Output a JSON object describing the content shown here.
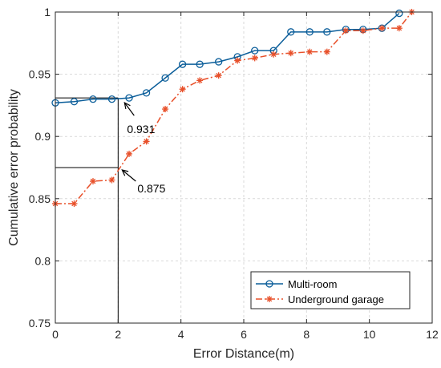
{
  "chart_data": {
    "type": "line",
    "title": "",
    "xlabel": "Error Distance(m)",
    "ylabel": "Cumulative error probability",
    "xlim": [
      0,
      12
    ],
    "ylim": [
      0.75,
      1
    ],
    "xticks": [
      0,
      2,
      4,
      6,
      8,
      10,
      12
    ],
    "yticks": [
      0.75,
      0.8,
      0.85,
      0.9,
      0.95,
      1
    ],
    "xtick_labels": [
      "0",
      "2",
      "4",
      "6",
      "8",
      "10",
      "12"
    ],
    "ytick_labels": [
      "0.75",
      "0.8",
      "0.85",
      "0.9",
      "0.95",
      "1"
    ],
    "grid": true,
    "legend_position": "bottom-right",
    "series": [
      {
        "name": "Multi-room",
        "color": "#0b5e9a",
        "line_style": "solid",
        "marker": "circle",
        "x": [
          0,
          0.6,
          1.2,
          1.8,
          2.35,
          2.9,
          3.5,
          4.05,
          4.6,
          5.2,
          5.8,
          6.35,
          6.95,
          7.5,
          8.1,
          8.65,
          9.25,
          9.8,
          10.4,
          10.95
        ],
        "y": [
          0.927,
          0.928,
          0.93,
          0.93,
          0.931,
          0.935,
          0.947,
          0.958,
          0.958,
          0.96,
          0.964,
          0.969,
          0.969,
          0.984,
          0.984,
          0.984,
          0.986,
          0.986,
          0.987,
          0.999
        ]
      },
      {
        "name": "Underground garage",
        "color": "#e8502a",
        "line_style": "dash-dot",
        "marker": "asterisk",
        "x": [
          0,
          0.6,
          1.2,
          1.8,
          2.35,
          2.9,
          3.5,
          4.05,
          4.6,
          5.2,
          5.8,
          6.35,
          6.95,
          7.5,
          8.1,
          8.65,
          9.25,
          9.8,
          10.4,
          10.95,
          11.35
        ],
        "y": [
          0.846,
          0.846,
          0.864,
          0.865,
          0.886,
          0.896,
          0.922,
          0.938,
          0.945,
          0.949,
          0.961,
          0.963,
          0.966,
          0.967,
          0.968,
          0.968,
          0.985,
          0.985,
          0.987,
          0.987,
          1.0
        ]
      }
    ],
    "annotations": [
      {
        "text": "0.931",
        "x": 2,
        "y": 0.931
      },
      {
        "text": "0.875",
        "x": 2,
        "y": 0.875
      }
    ]
  }
}
